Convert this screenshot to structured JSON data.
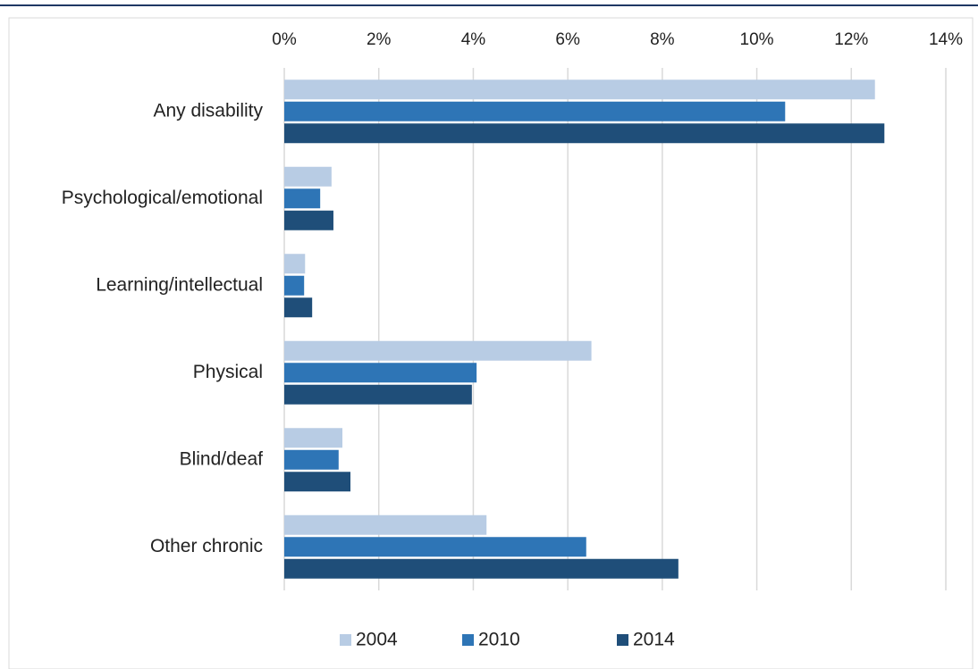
{
  "chart_data": {
    "type": "barh",
    "categories": [
      "Any disability",
      "Psychological/emotional",
      "Learning/intellectual",
      "Physical",
      "Blind/deaf",
      "Other chronic"
    ],
    "series": [
      {
        "name": "2004",
        "color": "#b8cce4",
        "values": [
          12.5,
          1.0,
          0.44,
          6.5,
          1.23,
          4.28
        ]
      },
      {
        "name": "2010",
        "color": "#2e75b6",
        "values": [
          10.6,
          0.76,
          0.42,
          4.07,
          1.15,
          6.39
        ]
      },
      {
        "name": "2014",
        "color": "#1f4e79",
        "values": [
          12.7,
          1.04,
          0.59,
          3.97,
          1.4,
          8.34
        ]
      }
    ],
    "xlim": [
      0,
      14
    ],
    "xticks": [
      {
        "value": 0,
        "label": "0%"
      },
      {
        "value": 2,
        "label": "2%"
      },
      {
        "value": 4,
        "label": "4%"
      },
      {
        "value": 6,
        "label": "6%"
      },
      {
        "value": 8,
        "label": "8%"
      },
      {
        "value": 10,
        "label": "10%"
      },
      {
        "value": 12,
        "label": "12%"
      },
      {
        "value": 14,
        "label": "14%"
      }
    ],
    "grid": true,
    "legend": "bottom"
  }
}
